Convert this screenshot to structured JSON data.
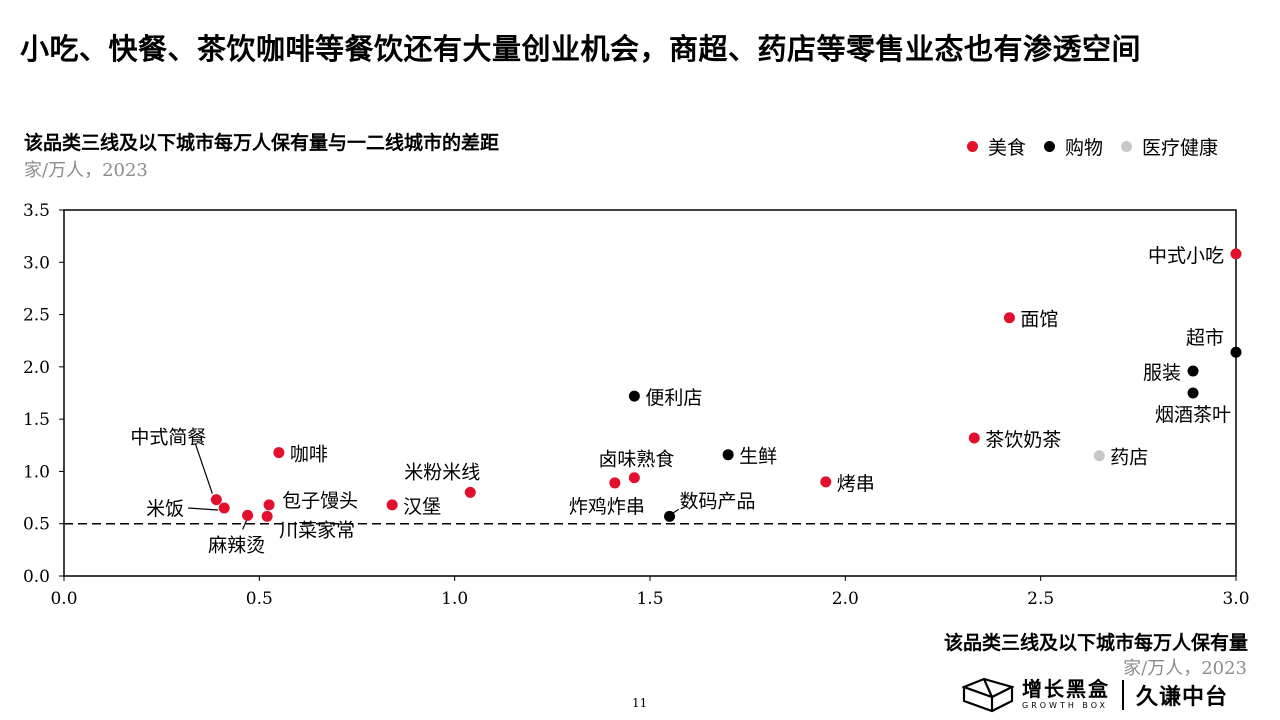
{
  "headline": "小吃、快餐、茶饮咖啡等餐饮还有大量创业机会，商超、药店等零售业态也有渗透空间",
  "legend": [
    {
      "label": "美食",
      "color": "#e3102d"
    },
    {
      "label": "购物",
      "color": "#000000"
    },
    {
      "label": "医疗健康",
      "color": "#c8c8c8"
    }
  ],
  "footer": {
    "page_number": "11",
    "brand_name": "增长黑盒",
    "brand_sub": "GROWTH BOX",
    "partner": "久谦中台"
  },
  "chart_data": {
    "type": "scatter",
    "title": "该品类三线及以下城市每万人保有量与一二线城市的差距",
    "ylabel_unit": "家/万人，2023",
    "xlabel": "该品类三线及以下城市每万人保有量",
    "xlabel_unit": "家/万人，2023",
    "xlim": [
      0,
      3
    ],
    "ylim": [
      0,
      3.5
    ],
    "x_ticks": [
      "0.0",
      "0.5",
      "1.0",
      "1.5",
      "2.0",
      "2.5",
      "3.0"
    ],
    "y_ticks": [
      "0.0",
      "0.5",
      "1.0",
      "1.5",
      "2.0",
      "2.5",
      "3.0",
      "3.5"
    ],
    "reference_line_y": 0.5,
    "grid": false,
    "legend_position": "top-right",
    "categories": {
      "food": {
        "name": "美食",
        "color": "#e3102d"
      },
      "shopping": {
        "name": "购物",
        "color": "#000000"
      },
      "health": {
        "name": "医疗健康",
        "color": "#c8c8c8"
      }
    },
    "points": [
      {
        "label": "中式小吃",
        "x": 3.0,
        "y": 3.08,
        "category": "food"
      },
      {
        "label": "面馆",
        "x": 2.42,
        "y": 2.47,
        "category": "food"
      },
      {
        "label": "超市",
        "x": 3.0,
        "y": 2.14,
        "category": "shopping"
      },
      {
        "label": "服装",
        "x": 2.89,
        "y": 1.96,
        "category": "shopping"
      },
      {
        "label": "烟酒茶叶",
        "x": 2.89,
        "y": 1.75,
        "category": "shopping"
      },
      {
        "label": "便利店",
        "x": 1.46,
        "y": 1.72,
        "category": "shopping"
      },
      {
        "label": "茶饮奶茶",
        "x": 2.33,
        "y": 1.32,
        "category": "food"
      },
      {
        "label": "药店",
        "x": 2.65,
        "y": 1.15,
        "category": "health"
      },
      {
        "label": "生鲜",
        "x": 1.7,
        "y": 1.16,
        "category": "shopping"
      },
      {
        "label": "咖啡",
        "x": 0.55,
        "y": 1.18,
        "category": "food"
      },
      {
        "label": "烤串",
        "x": 1.95,
        "y": 0.9,
        "category": "food"
      },
      {
        "label": "卤味熟食",
        "x": 1.46,
        "y": 0.94,
        "category": "food"
      },
      {
        "label": "炸鸡炸串",
        "x": 1.41,
        "y": 0.89,
        "category": "food"
      },
      {
        "label": "米粉米线",
        "x": 1.04,
        "y": 0.8,
        "category": "food"
      },
      {
        "label": "数码产品",
        "x": 1.55,
        "y": 0.57,
        "category": "shopping"
      },
      {
        "label": "汉堡",
        "x": 0.84,
        "y": 0.68,
        "category": "food"
      },
      {
        "label": "中式简餐",
        "x": 0.39,
        "y": 0.73,
        "category": "food"
      },
      {
        "label": "米饭",
        "x": 0.41,
        "y": 0.65,
        "category": "food"
      },
      {
        "label": "包子馒头",
        "x": 0.525,
        "y": 0.68,
        "category": "food"
      },
      {
        "label": "川菜家常",
        "x": 0.52,
        "y": 0.57,
        "category": "food"
      },
      {
        "label": "麻辣烫",
        "x": 0.47,
        "y": 0.58,
        "category": "food"
      }
    ]
  }
}
